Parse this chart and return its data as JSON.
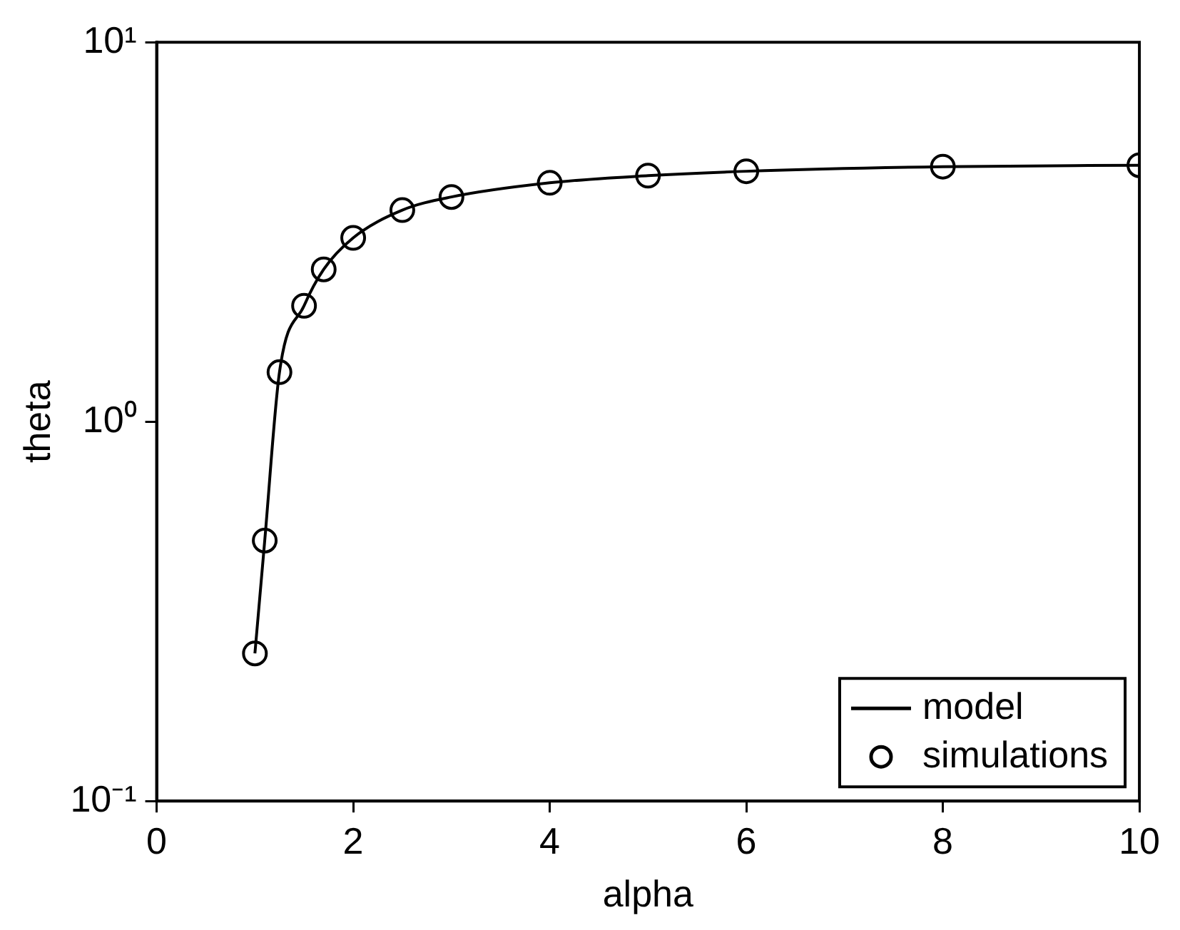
{
  "chart_data": {
    "type": "line",
    "xlabel": "alpha",
    "ylabel": "theta",
    "log": "y",
    "xlim": [
      0,
      10
    ],
    "xticks": [
      0,
      2,
      4,
      6,
      8,
      10
    ],
    "ylim": [
      0.1,
      10
    ],
    "yticks": [
      {
        "value": 0.1,
        "label": "10⁻¹"
      },
      {
        "value": 1,
        "label": "10⁰"
      },
      {
        "value": 10,
        "label": "10¹"
      }
    ],
    "grid": false,
    "legend": "bottom right",
    "x": [
      1,
      1.1,
      1.25,
      1.5,
      1.7,
      2,
      2.5,
      3,
      4,
      5,
      6,
      8,
      10
    ],
    "series": [
      {
        "name": "model",
        "color": "#000000",
        "marker": "none",
        "line_style": "solid",
        "values": [
          0.245,
          0.486,
          1.35,
          2.02,
          2.52,
          3.05,
          3.61,
          3.91,
          4.26,
          4.45,
          4.57,
          4.7,
          4.74
        ]
      },
      {
        "name": "simulations",
        "type": "scatter",
        "color": "#000000",
        "marker": "circle",
        "values": [
          0.245,
          0.486,
          1.35,
          2.02,
          2.52,
          3.05,
          3.61,
          3.91,
          4.26,
          4.45,
          4.57,
          4.7,
          4.74
        ]
      }
    ]
  }
}
